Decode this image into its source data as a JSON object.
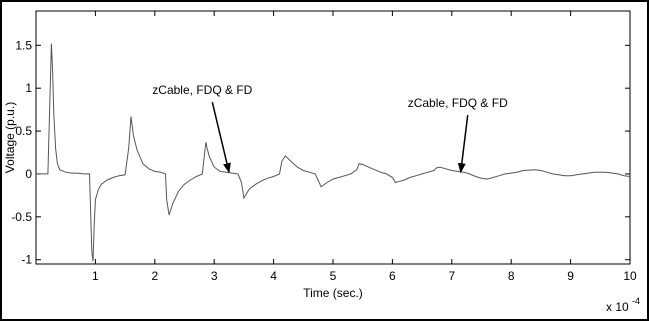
{
  "chart_data": {
    "type": "line",
    "title": "",
    "xlabel": "Time (sec.)",
    "ylabel": "Voltage (p.u.)",
    "x_multiplier_label": "x 10",
    "x_multiplier_exponent": "-4",
    "xlim": [
      0,
      10
    ],
    "ylim": [
      -1.05,
      1.9
    ],
    "grid": false,
    "xticks": [
      1,
      2,
      3,
      4,
      5,
      6,
      7,
      8,
      9,
      10
    ],
    "xtick_labels": [
      "1",
      "2",
      "3",
      "4",
      "5",
      "6",
      "7",
      "8",
      "9",
      "10"
    ],
    "yticks": [
      -1,
      -0.5,
      0,
      0.5,
      1,
      1.5
    ],
    "ytick_labels": [
      "-1",
      "-0.5",
      "0",
      "0.5",
      "1",
      "1.5"
    ],
    "line_color": "#555555",
    "series": [
      {
        "x": [
          0,
          0.2,
          0.26,
          0.28,
          0.3,
          0.33,
          0.36,
          0.4,
          0.5,
          0.6,
          0.7,
          0.8,
          0.9,
          0.94,
          0.96,
          0.98,
          1.0,
          1.05,
          1.1,
          1.2,
          1.3,
          1.4,
          1.5,
          1.56,
          1.6,
          1.64,
          1.7,
          1.8,
          1.9,
          2.0,
          2.1,
          2.18,
          2.2,
          2.24,
          2.3,
          2.4,
          2.5,
          2.6,
          2.7,
          2.8,
          2.84,
          2.86,
          2.88,
          2.92,
          3.0,
          3.1,
          3.2,
          3.3,
          3.4,
          3.46,
          3.5,
          3.55,
          3.6,
          3.7,
          3.8,
          3.9,
          4.0,
          4.1,
          4.14,
          4.2,
          4.3,
          4.4,
          4.5,
          4.6,
          4.7,
          4.74,
          4.8,
          4.9,
          5.0,
          5.1,
          5.2,
          5.3,
          5.4,
          5.44,
          5.5,
          5.6,
          5.7,
          5.8,
          5.9,
          6.0,
          6.05,
          6.1,
          6.2,
          6.3,
          6.4,
          6.5,
          6.6,
          6.7,
          6.74,
          6.8,
          6.9,
          7.0,
          7.1,
          7.2,
          7.3,
          7.4,
          7.5,
          7.6,
          7.7,
          7.8,
          7.9,
          8.0,
          8.1,
          8.2,
          8.4,
          8.5,
          8.6,
          8.7,
          8.8,
          8.9,
          9.0,
          9.1,
          9.2,
          9.3,
          9.4,
          9.5,
          9.6,
          9.7,
          9.8,
          9.9,
          10.0
        ],
        "y": [
          0,
          0,
          1.52,
          1.2,
          0.7,
          0.3,
          0.12,
          0.05,
          0.02,
          0.01,
          0.01,
          0.0,
          0.0,
          -0.9,
          -1.02,
          -0.6,
          -0.3,
          -0.18,
          -0.12,
          -0.07,
          -0.04,
          -0.02,
          -0.01,
          0.3,
          0.67,
          0.45,
          0.28,
          0.12,
          0.06,
          0.03,
          0.02,
          0.0,
          -0.3,
          -0.48,
          -0.35,
          -0.2,
          -0.12,
          -0.07,
          -0.03,
          0.0,
          0.25,
          0.37,
          0.3,
          0.2,
          0.08,
          0.03,
          0.02,
          0.01,
          0.0,
          -0.1,
          -0.28,
          -0.22,
          -0.17,
          -0.12,
          -0.08,
          -0.05,
          -0.03,
          0.0,
          0.15,
          0.21,
          0.14,
          0.08,
          0.04,
          0.02,
          0.0,
          -0.06,
          -0.15,
          -0.1,
          -0.06,
          -0.04,
          -0.02,
          0.0,
          0.05,
          0.12,
          0.11,
          0.08,
          0.05,
          0.02,
          0.0,
          -0.04,
          -0.1,
          -0.09,
          -0.07,
          -0.04,
          -0.02,
          0.0,
          0.02,
          0.04,
          0.07,
          0.08,
          0.06,
          0.04,
          0.03,
          0.02,
          0.0,
          -0.03,
          -0.05,
          -0.06,
          -0.04,
          -0.02,
          0.0,
          0.01,
          0.02,
          0.04,
          0.05,
          0.04,
          0.02,
          0.0,
          -0.01,
          -0.02,
          -0.02,
          -0.01,
          0.0,
          0.01,
          0.02,
          0.02,
          0.02,
          0.01,
          0.0,
          -0.02,
          -0.03
        ]
      }
    ],
    "annotations": [
      {
        "text": "zCable, FDQ & FD",
        "text_x": 2.8,
        "text_y": 0.93,
        "arrow_to_x": 3.25,
        "arrow_to_y": 0.02
      },
      {
        "text": "zCable, FDQ & FD",
        "text_x": 7.1,
        "text_y": 0.78,
        "arrow_to_x": 7.15,
        "arrow_to_y": 0.02
      }
    ]
  }
}
